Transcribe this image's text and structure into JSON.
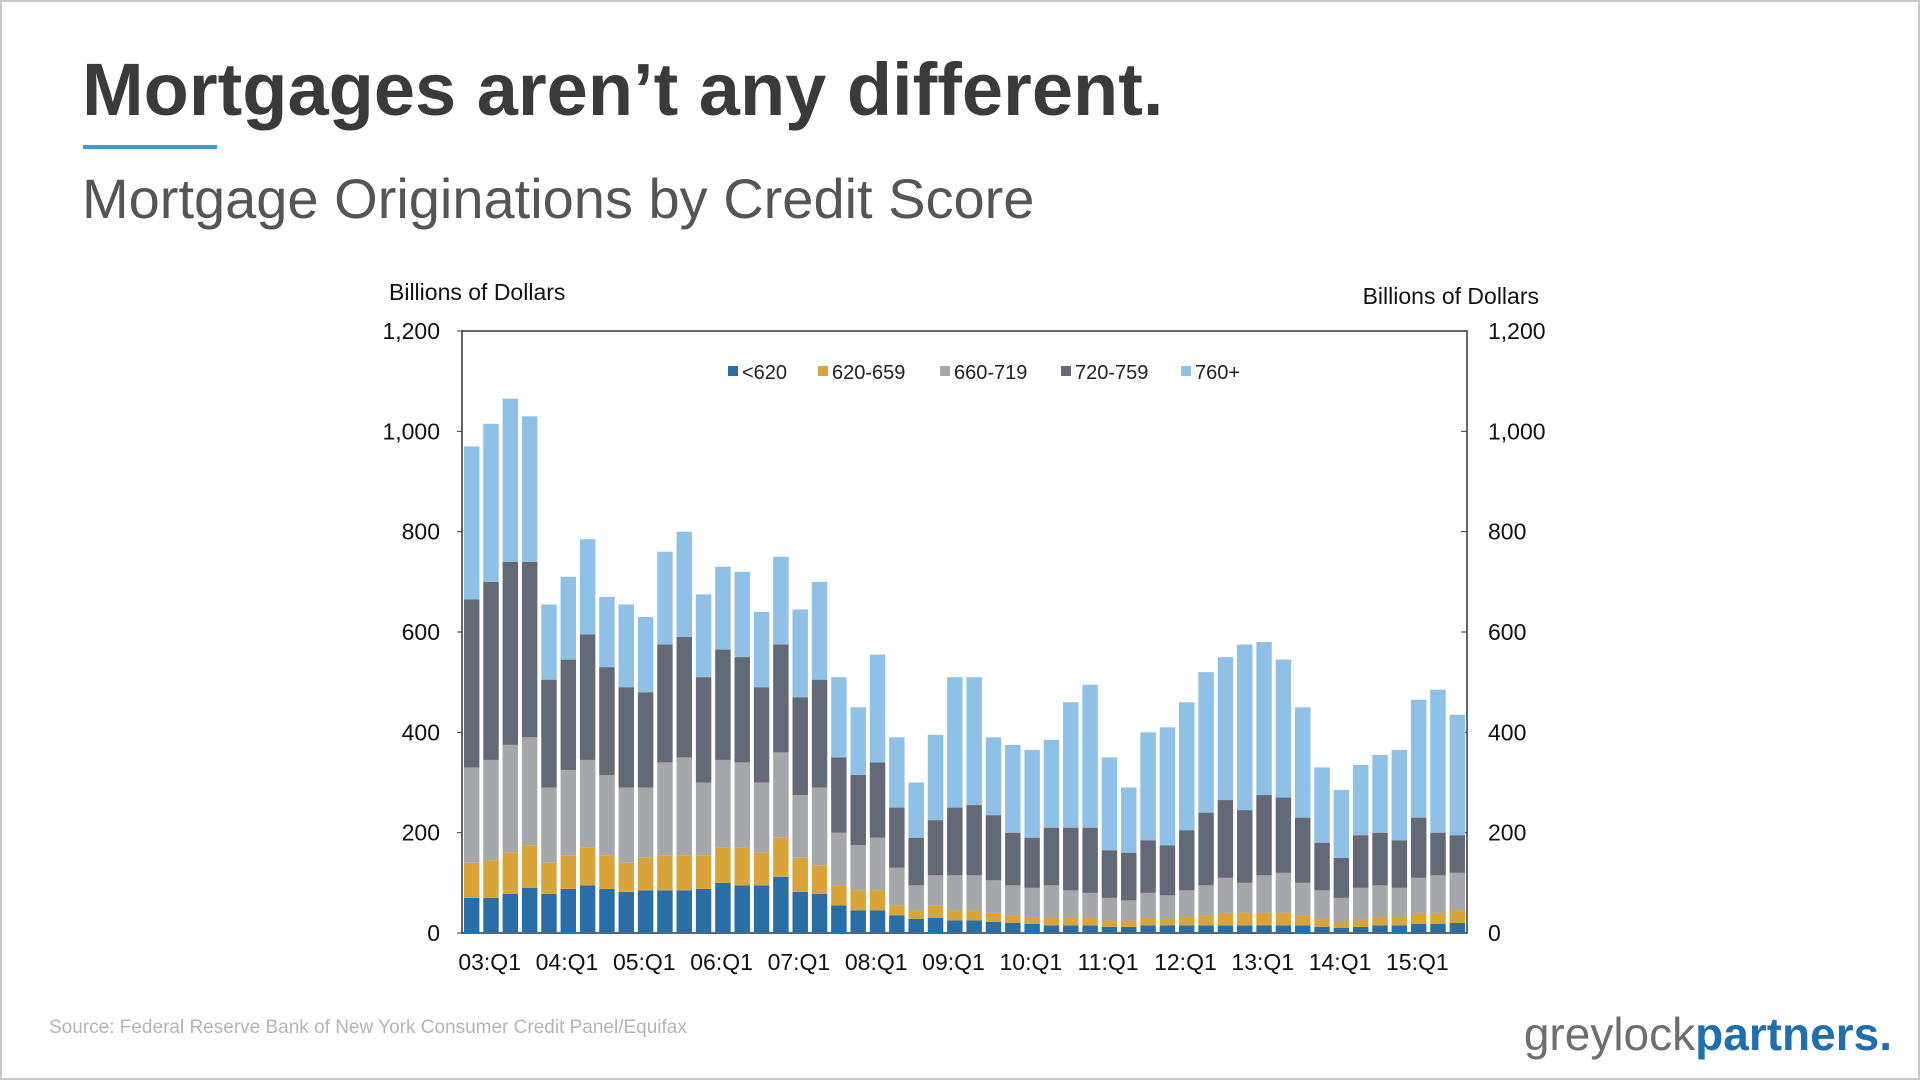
{
  "title": "Mortgages aren’t any different.",
  "chart_data": {
    "type": "bar",
    "stacked": true,
    "title": "Mortgage Originations by Credit Score",
    "y_label": "Billions of Dollars",
    "y2_label": "Billions of Dollars",
    "categories": [
      "03:Q1",
      null,
      null,
      null,
      "04:Q1",
      null,
      null,
      null,
      "05:Q1",
      null,
      null,
      null,
      "06:Q1",
      null,
      null,
      null,
      "07:Q1",
      null,
      null,
      null,
      "08:Q1",
      null,
      null,
      null,
      "09:Q1",
      null,
      null,
      null,
      "10:Q1",
      null,
      null,
      null,
      "11:Q1",
      null,
      null,
      null,
      "12:Q1",
      null,
      null,
      null,
      "13:Q1",
      null,
      null,
      null,
      "14:Q1",
      null,
      null,
      null,
      "15:Q1",
      null,
      null,
      null
    ],
    "series": [
      {
        "name": "<620",
        "color": "#2a6ea6",
        "values": [
          70,
          70,
          78,
          90,
          78,
          88,
          95,
          88,
          82,
          85,
          85,
          85,
          88,
          100,
          95,
          95,
          112,
          82,
          78,
          55,
          45,
          45,
          35,
          28,
          30,
          25,
          25,
          22,
          20,
          18,
          15,
          15,
          15,
          12,
          12,
          15,
          15,
          15,
          15,
          15,
          15,
          15,
          15,
          15,
          12,
          10,
          12,
          15,
          15,
          18,
          18,
          20
        ]
      },
      {
        "name": "620-659",
        "color": "#d9a43a",
        "values": [
          70,
          75,
          82,
          85,
          62,
          67,
          75,
          67,
          58,
          65,
          70,
          70,
          67,
          70,
          75,
          65,
          78,
          68,
          57,
          40,
          40,
          40,
          20,
          17,
          25,
          20,
          20,
          18,
          15,
          14,
          15,
          15,
          15,
          13,
          13,
          15,
          13,
          17,
          20,
          25,
          25,
          25,
          25,
          20,
          16,
          12,
          16,
          17,
          15,
          22,
          22,
          25
        ]
      },
      {
        "name": "660-719",
        "color": "#a5a7aa",
        "values": [
          190,
          200,
          215,
          215,
          150,
          170,
          175,
          160,
          150,
          140,
          185,
          195,
          145,
          175,
          170,
          140,
          170,
          125,
          155,
          105,
          90,
          105,
          75,
          50,
          60,
          70,
          70,
          65,
          60,
          58,
          65,
          55,
          50,
          45,
          40,
          50,
          47,
          53,
          60,
          70,
          60,
          75,
          80,
          65,
          57,
          48,
          62,
          63,
          60,
          70,
          75,
          75
        ]
      },
      {
        "name": "720-759",
        "color": "#646a75",
        "values": [
          335,
          355,
          365,
          350,
          215,
          220,
          250,
          215,
          200,
          190,
          235,
          240,
          210,
          220,
          210,
          190,
          215,
          195,
          215,
          150,
          140,
          150,
          120,
          95,
          110,
          135,
          140,
          130,
          105,
          100,
          115,
          125,
          130,
          95,
          95,
          105,
          100,
          120,
          145,
          155,
          145,
          160,
          150,
          130,
          95,
          80,
          105,
          105,
          95,
          120,
          85,
          75
        ]
      },
      {
        "name": "760+",
        "color": "#8fc1e6",
        "values": [
          305,
          315,
          325,
          290,
          150,
          165,
          190,
          140,
          165,
          150,
          185,
          210,
          165,
          165,
          170,
          150,
          175,
          175,
          195,
          160,
          135,
          215,
          140,
          110,
          170,
          260,
          255,
          155,
          175,
          175,
          175,
          250,
          285,
          185,
          130,
          215,
          235,
          255,
          280,
          285,
          330,
          305,
          275,
          220,
          150,
          135,
          140,
          155,
          180,
          235,
          285,
          240
        ]
      }
    ],
    "ylim": [
      0,
      1200
    ],
    "yticks": [
      0,
      200,
      400,
      600,
      800,
      {
        "value": 1000,
        "label": "1,000"
      },
      {
        "value": 1200,
        "label": "1,200"
      }
    ],
    "y2lim": [
      0,
      1200
    ],
    "y2ticks": [
      0,
      200,
      400,
      600,
      800,
      {
        "value": 1000,
        "label": "1,000"
      },
      {
        "value": 1200,
        "label": "1,200"
      }
    ],
    "legend": "top"
  },
  "source": "Source: Federal Reserve Bank of New York Consumer Credit Panel/Equifax",
  "logo": {
    "first": "greylock",
    "second": "partners."
  }
}
